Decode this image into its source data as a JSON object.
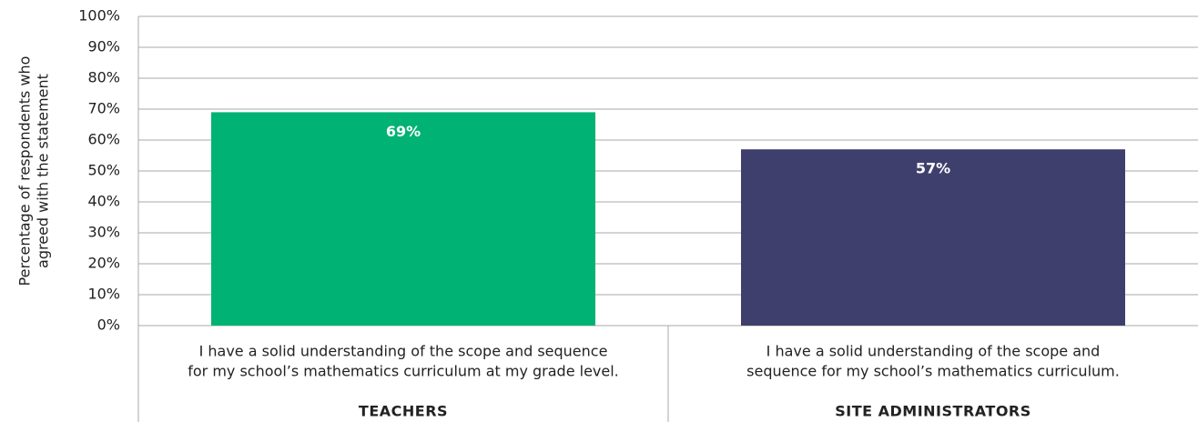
{
  "chart_data": {
    "type": "bar",
    "ylabel": [
      "Percentage of respondents who",
      "agreed with the statement"
    ],
    "categories": [
      [
        "I have a solid understanding of the scope and sequence",
        "for my school’s mathematics curriculum at my grade level."
      ],
      [
        "I have a solid understanding of the scope and",
        "sequence for my school’s mathematics curriculum."
      ]
    ],
    "groups": [
      "TEACHERS",
      "SITE ADMINISTRATORS"
    ],
    "values": [
      69,
      57
    ],
    "value_labels": [
      "69%",
      "57%"
    ],
    "colors": [
      "#00b274",
      "#3f3f6e"
    ],
    "ylim": [
      0,
      100
    ],
    "yticks": [
      {
        "value": 0,
        "label": "0%"
      },
      {
        "value": 10,
        "label": "10%"
      },
      {
        "value": 20,
        "label": "20%"
      },
      {
        "value": 30,
        "label": "30%"
      },
      {
        "value": 40,
        "label": "40%"
      },
      {
        "value": 50,
        "label": "50%"
      },
      {
        "value": 60,
        "label": "60%"
      },
      {
        "value": 70,
        "label": "70%"
      },
      {
        "value": 80,
        "label": "80%"
      },
      {
        "value": 90,
        "label": "90%"
      },
      {
        "value": 100,
        "label": "100%"
      }
    ],
    "grid": true
  }
}
